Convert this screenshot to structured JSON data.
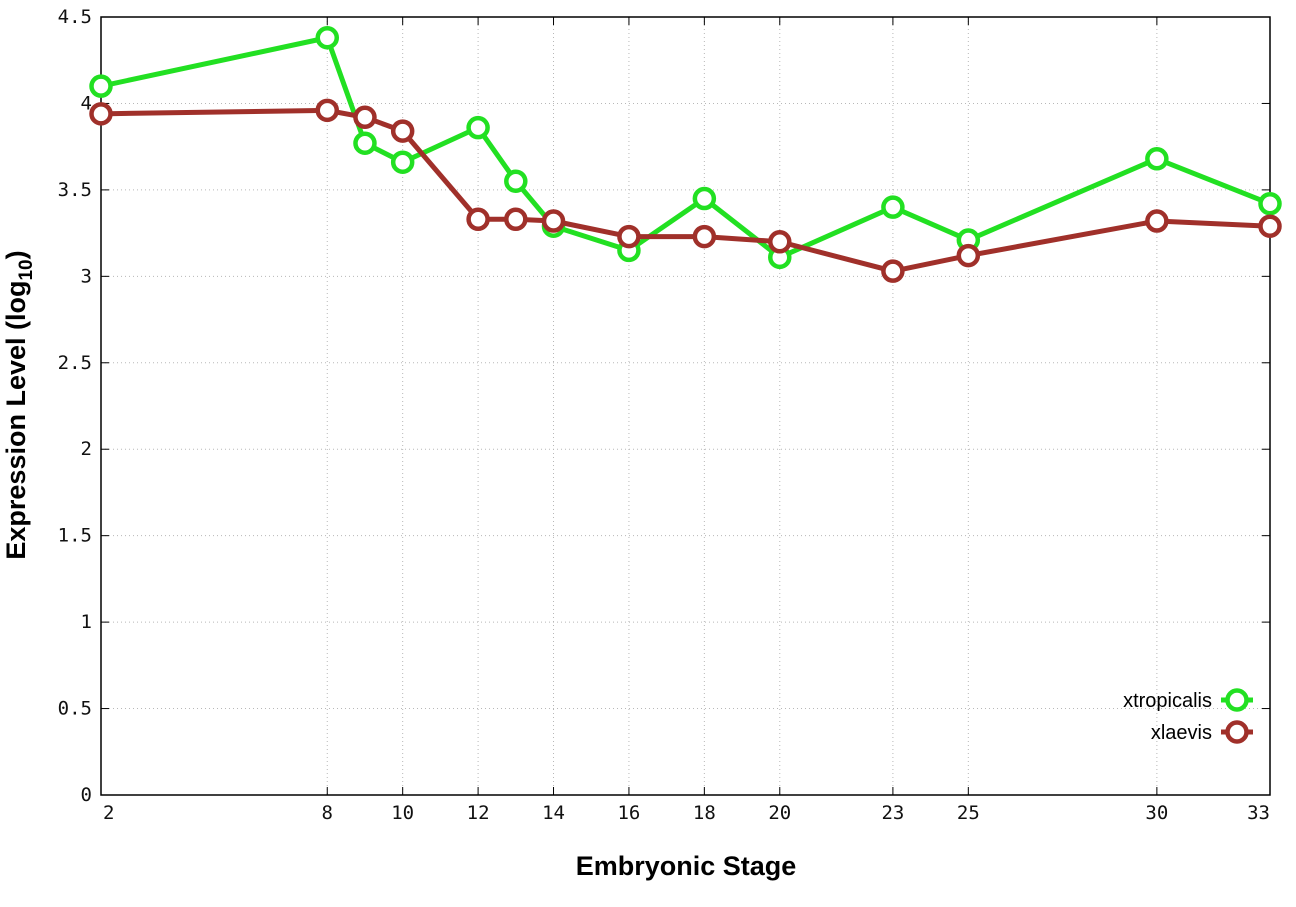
{
  "chart_data": {
    "type": "line",
    "x_categories": [
      "2",
      "8",
      "9",
      "10",
      "12",
      "13",
      "14",
      "16",
      "18",
      "20",
      "23",
      "25",
      "30",
      "33"
    ],
    "x_tick_labels": [
      "2",
      "8",
      "10",
      "12",
      "14",
      "16",
      "18",
      "20",
      "23",
      "25",
      "30",
      "33"
    ],
    "y_ticks": [
      "0",
      "0.5",
      "1",
      "1.5",
      "2",
      "2.5",
      "3",
      "3.5",
      "4",
      "4.5"
    ],
    "ylim": [
      0,
      4.5
    ],
    "xlabel": "Embryonic Stage",
    "ylabel_main": "Expression Level (log",
    "ylabel_sub": "10",
    "ylabel_close": ")",
    "grid": true,
    "legend_position": "bottom-right",
    "series": [
      {
        "name": "xtropicalis",
        "color": "#22e022",
        "values": [
          4.1,
          4.38,
          3.77,
          3.66,
          3.86,
          3.55,
          3.29,
          3.15,
          3.45,
          3.11,
          3.4,
          3.21,
          3.68,
          3.42
        ]
      },
      {
        "name": "xlaevis",
        "color": "#a0302a",
        "values": [
          3.94,
          3.96,
          3.92,
          3.84,
          3.33,
          3.33,
          3.32,
          3.23,
          3.23,
          3.2,
          3.03,
          3.12,
          3.32,
          3.29
        ]
      }
    ]
  }
}
